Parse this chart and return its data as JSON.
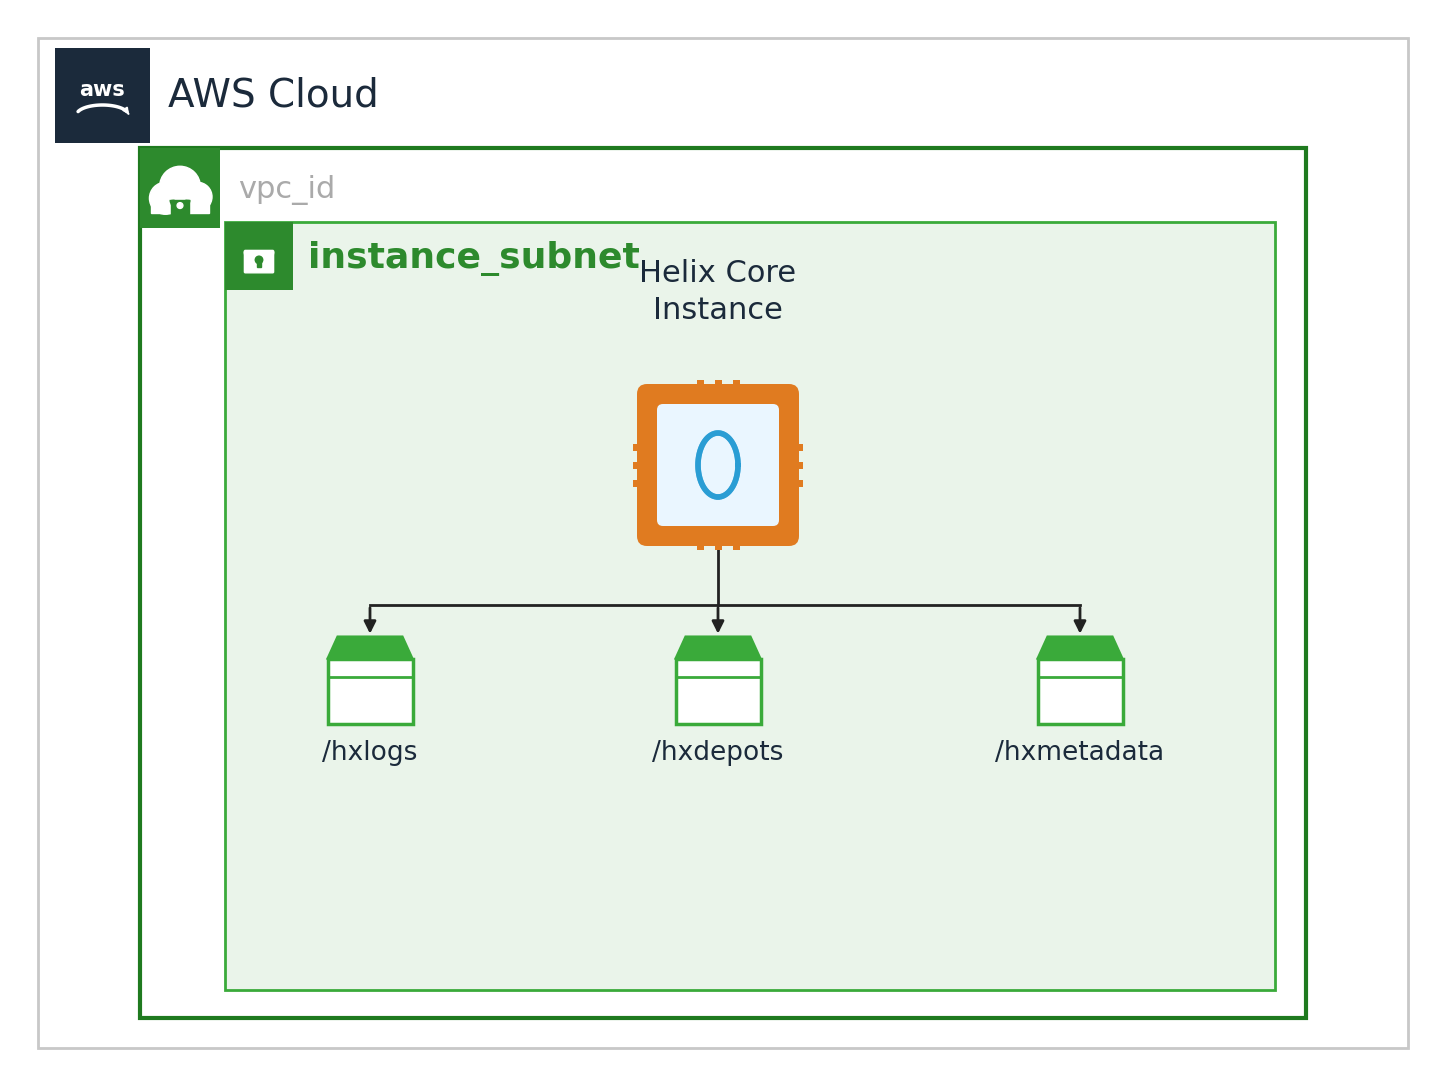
{
  "bg_color": "#ffffff",
  "aws_box_color": "#1b2a3b",
  "aws_cloud_text": "AWS Cloud",
  "vpc_label": "vpc_id",
  "vpc_border_color": "#1f7a1f",
  "vpc_icon_bg": "#2d8a2d",
  "subnet_label": "instance_subnet",
  "subnet_bg": "#eaf4ea",
  "subnet_border_color": "#3aaa3a",
  "subnet_icon_bg": "#2d8a2d",
  "helix_label_line1": "Helix Core",
  "helix_label_line2": "Instance",
  "chip_color": "#e07b20",
  "chip_inner_bg": "#eaf6ff",
  "chip_center_color": "#2a9dd4",
  "volume_color": "#3aaa3a",
  "volume_labels": [
    "/hxlogs",
    "/hxdepots",
    "/hxmetadata"
  ],
  "arrow_color": "#222222",
  "label_color_green": "#2d8a2d",
  "label_color_dark": "#1b2a3b",
  "label_color_gray": "#aaaaaa",
  "outer_border_color": "#c8c8c8"
}
